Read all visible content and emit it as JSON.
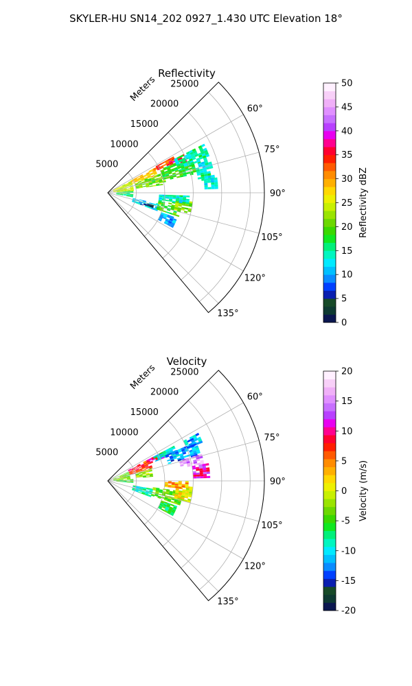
{
  "figure": {
    "suptitle": "SKYLER-HU  SN14_202  0927_1.430 UTC Elevation 18°"
  },
  "chart_data": [
    {
      "type": "polar-sector",
      "title": "Reflectivity",
      "radial_label": "Meters",
      "radial_ticks": [
        5000,
        10000,
        15000,
        20000,
        25000
      ],
      "radial_max": 27500,
      "angle_ticks_deg": [
        60,
        75,
        90,
        105,
        120,
        135
      ],
      "angle_tick_labels": [
        "60°",
        "75°",
        "90°",
        "105°",
        "120°",
        "135°"
      ],
      "angle_range_deg": [
        45,
        140
      ],
      "grid": true,
      "colorbar": {
        "label": "Reflectivity dBZ",
        "min": 0,
        "max": 50,
        "ticks": [
          0,
          5,
          10,
          15,
          20,
          25,
          30,
          35,
          40,
          45,
          50
        ],
        "colors": [
          "#0b1750",
          "#0e3a32",
          "#174a28",
          "#0a1fb0",
          "#0040ff",
          "#0a8cff",
          "#00c0ff",
          "#00eaff",
          "#00f6c0",
          "#00f07a",
          "#10e820",
          "#3ad800",
          "#6cd800",
          "#9ae400",
          "#c8f000",
          "#eef000",
          "#ffd800",
          "#ffb000",
          "#ff8c00",
          "#ff5a00",
          "#ff1e00",
          "#ff0030",
          "#ff0090",
          "#e800f0",
          "#b840ff",
          "#c870ff",
          "#e090ff",
          "#f0b0f8",
          "#f8d0f8",
          "#fff0ff"
        ]
      },
      "echo_regions": [
        {
          "r": [
            1000,
            4500
          ],
          "az": [
            63,
            85
          ],
          "value": 24
        },
        {
          "r": [
            4500,
            9000
          ],
          "az": [
            62,
            70
          ],
          "value": 28
        },
        {
          "r": [
            9000,
            13000
          ],
          "az": [
            61,
            65
          ],
          "value": 33
        },
        {
          "r": [
            12000,
            15000
          ],
          "az": [
            63,
            68
          ],
          "value": 37
        },
        {
          "r": [
            5000,
            10000
          ],
          "az": [
            70,
            82
          ],
          "value": 21
        },
        {
          "r": [
            10000,
            16000
          ],
          "az": [
            66,
            78
          ],
          "value": 18
        },
        {
          "r": [
            13000,
            19000
          ],
          "az": [
            63,
            72
          ],
          "value": 15
        },
        {
          "r": [
            16000,
            19000
          ],
          "az": [
            72,
            82
          ],
          "value": 14
        },
        {
          "r": [
            17000,
            19000
          ],
          "az": [
            82,
            87
          ],
          "value": 13
        },
        {
          "r": [
            1500,
            4000
          ],
          "az": [
            86,
            100
          ],
          "value": 16
        },
        {
          "r": [
            4500,
            9000
          ],
          "az": [
            102,
            110
          ],
          "value": 12
        },
        {
          "r": [
            9000,
            13000
          ],
          "az": [
            98,
            108
          ],
          "value": 19
        },
        {
          "r": [
            12000,
            15000
          ],
          "az": [
            96,
            104
          ],
          "value": 22
        },
        {
          "r": [
            9000,
            14000
          ],
          "az": [
            92,
            97
          ],
          "value": 14
        },
        {
          "r": [
            10000,
            13000
          ],
          "az": [
            110,
            118
          ],
          "value": 10
        },
        {
          "r": [
            6000,
            8000
          ],
          "az": [
            105,
            109
          ],
          "value": 3
        }
      ]
    },
    {
      "type": "polar-sector",
      "title": "Velocity",
      "radial_label": "Meters",
      "radial_ticks": [
        5000,
        10000,
        15000,
        20000,
        25000
      ],
      "radial_max": 27500,
      "angle_ticks_deg": [
        60,
        75,
        90,
        105,
        120,
        135
      ],
      "angle_tick_labels": [
        "60°",
        "75°",
        "90°",
        "105°",
        "120°",
        "135°"
      ],
      "angle_range_deg": [
        45,
        140
      ],
      "grid": true,
      "colorbar": {
        "label": "Velocity (m/s)",
        "min": -20,
        "max": 20,
        "ticks": [
          -20,
          -15,
          -10,
          -5,
          0,
          5,
          10,
          15,
          20
        ],
        "colors": [
          "#0b1750",
          "#0e3a32",
          "#174a28",
          "#0a1fb0",
          "#0040ff",
          "#0a8cff",
          "#00c0ff",
          "#00eaff",
          "#00f6c0",
          "#00f07a",
          "#10e820",
          "#3ad800",
          "#6cd800",
          "#9ae400",
          "#c8f000",
          "#eef000",
          "#ffd800",
          "#ffb000",
          "#ff8c00",
          "#ff5a00",
          "#ff1e00",
          "#ff0030",
          "#ff0090",
          "#e800f0",
          "#b840ff",
          "#c870ff",
          "#e090ff",
          "#f0b0f8",
          "#f8d0f8",
          "#fff0ff"
        ]
      },
      "echo_regions": [
        {
          "r": [
            1000,
            4000
          ],
          "az": [
            66,
            86
          ],
          "value": -3
        },
        {
          "r": [
            4000,
            8000
          ],
          "az": [
            62,
            74
          ],
          "value": 7
        },
        {
          "r": [
            8000,
            11000
          ],
          "az": [
            62,
            68
          ],
          "value": 9
        },
        {
          "r": [
            5000,
            8000
          ],
          "az": [
            74,
            84
          ],
          "value": -2
        },
        {
          "r": [
            9000,
            13000
          ],
          "az": [
            62,
            68
          ],
          "value": -9
        },
        {
          "r": [
            11000,
            17000
          ],
          "az": [
            66,
            74
          ],
          "value": -12
        },
        {
          "r": [
            13000,
            17000
          ],
          "az": [
            74,
            80
          ],
          "value": 15
        },
        {
          "r": [
            15000,
            18000
          ],
          "az": [
            80,
            88
          ],
          "value": 11
        },
        {
          "r": [
            15000,
            18000
          ],
          "az": [
            62,
            68
          ],
          "value": -11
        },
        {
          "r": [
            1500,
            4000
          ],
          "az": [
            86,
            94
          ],
          "value": -5
        },
        {
          "r": [
            4500,
            8000
          ],
          "az": [
            100,
            110
          ],
          "value": -9
        },
        {
          "r": [
            8000,
            13000
          ],
          "az": [
            98,
            108
          ],
          "value": -4
        },
        {
          "r": [
            12000,
            15000
          ],
          "az": [
            94,
            104
          ],
          "value": 1
        },
        {
          "r": [
            10000,
            14000
          ],
          "az": [
            90,
            96
          ],
          "value": 3
        },
        {
          "r": [
            10000,
            13000
          ],
          "az": [
            110,
            118
          ],
          "value": -6
        }
      ]
    }
  ]
}
